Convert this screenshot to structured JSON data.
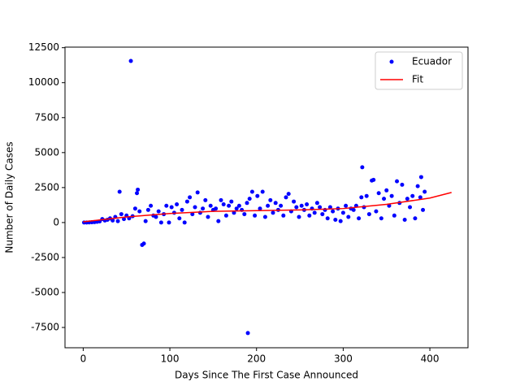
{
  "chart_data": {
    "type": "scatter",
    "xlabel": "Days Since The First Case Announced",
    "ylabel": "Number of Daily Cases",
    "xlim": [
      -21,
      444
    ],
    "ylim": [
      -8950,
      12540
    ],
    "xticks": [
      0,
      100,
      200,
      300,
      400
    ],
    "yticks": [
      -7500,
      -5000,
      -2500,
      0,
      2500,
      5000,
      7500,
      10000,
      12500
    ],
    "legend": "upper right",
    "series": [
      {
        "name": "Ecuador",
        "type": "scatter",
        "color": "#0000ff",
        "x": [
          1,
          4,
          7,
          10,
          13,
          16,
          19,
          22,
          25,
          28,
          31,
          34,
          37,
          40,
          42,
          44,
          47,
          50,
          53,
          55,
          57,
          60,
          62,
          63,
          65,
          68,
          70,
          72,
          75,
          78,
          81,
          84,
          87,
          90,
          93,
          96,
          99,
          102,
          105,
          108,
          111,
          114,
          117,
          120,
          123,
          126,
          129,
          132,
          135,
          138,
          141,
          144,
          147,
          150,
          153,
          156,
          159,
          162,
          165,
          168,
          171,
          174,
          177,
          180,
          183,
          186,
          189,
          190,
          192,
          195,
          198,
          201,
          204,
          207,
          210,
          213,
          216,
          219,
          222,
          225,
          228,
          231,
          234,
          237,
          240,
          243,
          246,
          249,
          252,
          255,
          258,
          261,
          264,
          267,
          270,
          273,
          276,
          279,
          282,
          285,
          288,
          291,
          294,
          297,
          300,
          303,
          306,
          309,
          312,
          315,
          318,
          321,
          322,
          324,
          327,
          330,
          333,
          335,
          338,
          341,
          344,
          347,
          350,
          353,
          356,
          359,
          362,
          365,
          368,
          371,
          374,
          377,
          380,
          383,
          386,
          389,
          390,
          392,
          394
        ],
        "values": [
          0,
          0,
          10,
          20,
          30,
          50,
          80,
          250,
          150,
          200,
          300,
          150,
          400,
          100,
          2200,
          600,
          250,
          500,
          300,
          11550,
          450,
          1000,
          2100,
          2350,
          800,
          -1600,
          -1500,
          100,
          900,
          1200,
          500,
          400,
          800,
          0,
          600,
          1200,
          0,
          1100,
          700,
          1300,
          300,
          900,
          0,
          1500,
          1800,
          600,
          1100,
          2150,
          700,
          1000,
          1600,
          400,
          1200,
          900,
          1000,
          100,
          1600,
          1300,
          500,
          1200,
          1500,
          700,
          1000,
          1200,
          900,
          600,
          1400,
          -7900,
          1700,
          2200,
          500,
          1900,
          1000,
          2200,
          400,
          1200,
          1600,
          700,
          1400,
          900,
          1200,
          500,
          1800,
          2050,
          800,
          1500,
          1100,
          400,
          1200,
          900,
          1300,
          500,
          1000,
          700,
          1400,
          1100,
          600,
          900,
          300,
          1100,
          800,
          200,
          1000,
          100,
          700,
          1200,
          400,
          1000,
          900,
          1200,
          300,
          1800,
          3950,
          1100,
          1900,
          600,
          3000,
          3050,
          800,
          2100,
          300,
          1700,
          2300,
          1200,
          1900,
          500,
          2950,
          1400,
          2700,
          200,
          1700,
          1100,
          1900,
          300,
          2600,
          1800,
          3250,
          900,
          2200
        ]
      },
      {
        "name": "Fit",
        "type": "line",
        "color": "#ff0000",
        "x": [
          0,
          50,
          100,
          150,
          200,
          250,
          300,
          350,
          400,
          425
        ],
        "values": [
          50,
          400,
          650,
          800,
          850,
          900,
          1000,
          1300,
          1750,
          2150
        ]
      }
    ]
  }
}
